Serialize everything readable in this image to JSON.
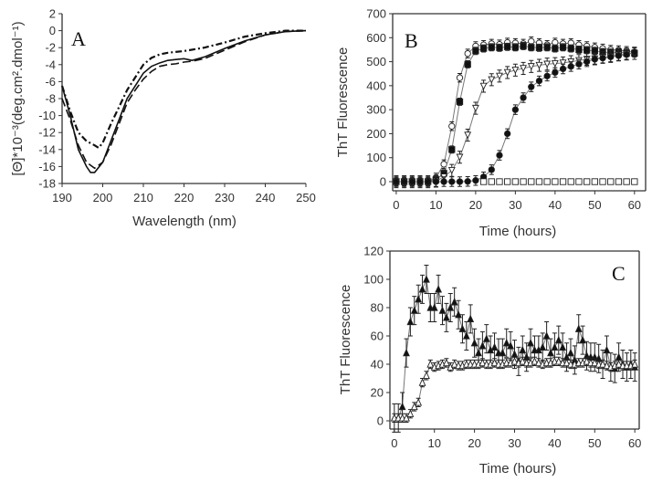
{
  "chart_data": [
    {
      "type": "line",
      "panel_label": "A",
      "xlabel": "Wavelength (nm)",
      "ylabel": "[Θ]*10⁻³(deg.cm².dmol⁻¹)",
      "xlim": [
        190,
        250
      ],
      "ylim": [
        -18,
        2
      ],
      "xticks": [
        190,
        200,
        210,
        220,
        230,
        240,
        250
      ],
      "yticks": [
        2,
        0,
        -2,
        -4,
        -6,
        -8,
        -10,
        -12,
        -14,
        -16,
        -18
      ],
      "series": [
        {
          "name": "solid",
          "style": "solid",
          "x": [
            190,
            192,
            194,
            196,
            197,
            198,
            200,
            202,
            204,
            206,
            208,
            210,
            212,
            214,
            216,
            218,
            220,
            222,
            225,
            230,
            235,
            240,
            245,
            250
          ],
          "y": [
            -6.5,
            -10,
            -14,
            -16,
            -16.7,
            -16.7,
            -15.5,
            -13,
            -10.5,
            -8,
            -6.5,
            -5,
            -4.2,
            -3.8,
            -3.5,
            -3.4,
            -3.3,
            -3.5,
            -3.1,
            -2.1,
            -1.2,
            -0.5,
            -0.1,
            0
          ]
        },
        {
          "name": "dashed",
          "style": "dashed",
          "x": [
            190,
            192,
            194,
            196,
            198,
            200,
            202,
            204,
            206,
            208,
            210,
            212,
            214,
            216,
            218,
            220,
            222,
            225,
            230,
            235,
            240,
            245,
            250
          ],
          "y": [
            -8,
            -10.5,
            -13.5,
            -15.5,
            -16.2,
            -15.5,
            -13.5,
            -11,
            -8.5,
            -7,
            -5.7,
            -4.8,
            -4.2,
            -4,
            -3.9,
            -3.7,
            -3.6,
            -3.3,
            -2.3,
            -1.3,
            -0.5,
            -0.1,
            0
          ]
        },
        {
          "name": "dash-dot",
          "style": "dashdot",
          "x": [
            190,
            192,
            194,
            196,
            198,
            199,
            200,
            202,
            204,
            206,
            208,
            210,
            212,
            214,
            216,
            220,
            225,
            230,
            235,
            240,
            245,
            250
          ],
          "y": [
            -6.5,
            -9.5,
            -12,
            -13,
            -13.5,
            -13.8,
            -13.2,
            -11,
            -9,
            -7,
            -5.5,
            -4,
            -3.2,
            -2.8,
            -2.6,
            -2.4,
            -2,
            -1.4,
            -0.7,
            -0.3,
            0,
            0
          ]
        }
      ]
    },
    {
      "type": "scatter",
      "panel_label": "B",
      "xlabel": "Time (hours)",
      "ylabel": "ThT Fluorescence",
      "xlim": [
        -0.9,
        62.8
      ],
      "ylim": [
        -38,
        700
      ],
      "xticks": [
        0,
        10,
        20,
        30,
        40,
        50,
        60
      ],
      "yticks": [
        0,
        100,
        200,
        300,
        400,
        500,
        600,
        700
      ],
      "series": [
        {
          "name": "open circles",
          "marker": "circle-open",
          "error": 18,
          "x": [
            0,
            2,
            4,
            6,
            8,
            10,
            12,
            14,
            16,
            18,
            20,
            22,
            24,
            26,
            28,
            30,
            32,
            34,
            36,
            38,
            40,
            42,
            44,
            46,
            48,
            50,
            52,
            54,
            56,
            58,
            60
          ],
          "y": [
            0,
            0,
            0,
            0,
            0,
            17,
            73,
            231,
            433,
            534,
            565,
            570,
            575,
            572,
            580,
            578,
            575,
            585,
            578,
            570,
            580,
            575,
            578,
            570,
            565,
            560,
            555,
            550,
            548,
            545,
            540
          ]
        },
        {
          "name": "filled squares",
          "marker": "square-filled",
          "error": 15,
          "x": [
            0,
            2,
            4,
            6,
            8,
            10,
            12,
            14,
            16,
            18,
            20,
            22,
            24,
            26,
            28,
            30,
            32,
            34,
            36,
            38,
            40,
            42,
            44,
            46,
            48,
            50,
            52,
            54,
            56,
            58,
            60
          ],
          "y": [
            0,
            0,
            0,
            0,
            0,
            8,
            35,
            134,
            333,
            489,
            545,
            555,
            560,
            558,
            562,
            560,
            565,
            560,
            558,
            560,
            555,
            560,
            555,
            550,
            548,
            545,
            540,
            538,
            540,
            535,
            535
          ]
        },
        {
          "name": "open triangles",
          "marker": "triangle-down-open",
          "error": 25,
          "x": [
            0,
            2,
            4,
            6,
            8,
            10,
            12,
            14,
            16,
            18,
            20,
            22,
            24,
            26,
            28,
            30,
            32,
            34,
            36,
            38,
            40,
            42,
            44,
            46,
            48,
            50,
            52,
            54,
            56,
            58,
            60
          ],
          "y": [
            0,
            0,
            0,
            0,
            0,
            2,
            20,
            47,
            102,
            194,
            306,
            398,
            425,
            440,
            455,
            465,
            472,
            480,
            485,
            490,
            492,
            495,
            500,
            505,
            510,
            512,
            518,
            522,
            528,
            532,
            535
          ]
        },
        {
          "name": "filled circles",
          "marker": "circle-filled",
          "error": 20,
          "x": [
            0,
            2,
            4,
            6,
            8,
            10,
            12,
            14,
            16,
            18,
            20,
            22,
            24,
            26,
            28,
            30,
            32,
            34,
            36,
            38,
            40,
            42,
            44,
            46,
            48,
            50,
            52,
            54,
            56,
            58,
            60
          ],
          "y": [
            0,
            0,
            0,
            0,
            0,
            0,
            0,
            0,
            0,
            1,
            5,
            20,
            50,
            110,
            200,
            300,
            350,
            395,
            420,
            440,
            455,
            470,
            480,
            490,
            500,
            510,
            515,
            520,
            525,
            530,
            540
          ]
        },
        {
          "name": "open squares",
          "marker": "square-open",
          "error": 0,
          "x": [
            22,
            24,
            26,
            28,
            30,
            32,
            34,
            36,
            38,
            40,
            42,
            44,
            46,
            48,
            50,
            52,
            54,
            56,
            58,
            60
          ],
          "y": [
            0,
            0,
            0,
            0,
            0,
            0,
            0,
            0,
            0,
            0,
            0,
            0,
            0,
            0,
            0,
            0,
            0,
            0,
            0,
            0
          ]
        }
      ]
    },
    {
      "type": "scatter",
      "panel_label": "C",
      "xlabel": "Time (hours)",
      "ylabel": "ThT Fluorescence",
      "xlim": [
        -1.1,
        61.1
      ],
      "ylim": [
        -5.8,
        120
      ],
      "xticks": [
        0,
        10,
        20,
        30,
        40,
        50,
        60
      ],
      "yticks": [
        0,
        20,
        40,
        60,
        80,
        100,
        120
      ],
      "series": [
        {
          "name": "filled triangles",
          "marker": "triangle-filled",
          "error": 10,
          "x": [
            0,
            1,
            2,
            3,
            4,
            5,
            6,
            7,
            8,
            9,
            10,
            11,
            12,
            13,
            14,
            15,
            16,
            17,
            18,
            19,
            20,
            21,
            22,
            23,
            24,
            25,
            26,
            27,
            28,
            29,
            30,
            31,
            32,
            33,
            34,
            35,
            36,
            37,
            38,
            39,
            40,
            41,
            42,
            43,
            44,
            45,
            46,
            47,
            48,
            49,
            50,
            51,
            52,
            53,
            54,
            55,
            56,
            57,
            58,
            59,
            60
          ],
          "y": [
            2,
            2,
            10,
            48,
            70,
            78,
            86,
            93,
            100,
            80,
            80,
            93,
            78,
            73,
            80,
            84,
            75,
            65,
            60,
            72,
            55,
            48,
            53,
            58,
            50,
            52,
            48,
            48,
            55,
            53,
            47,
            42,
            50,
            45,
            55,
            50,
            50,
            52,
            60,
            48,
            52,
            57,
            52,
            45,
            48,
            43,
            65,
            57,
            46,
            45,
            45,
            44,
            40,
            50,
            38,
            37,
            45,
            40,
            38,
            40,
            38
          ]
        },
        {
          "name": "open triangles",
          "marker": "triangle-open",
          "error": 3,
          "x": [
            0,
            1,
            2,
            3,
            4,
            5,
            6,
            7,
            8,
            9,
            10,
            11,
            12,
            13,
            14,
            15,
            16,
            17,
            18,
            19,
            20,
            21,
            22,
            23,
            24,
            25,
            26,
            27,
            28,
            29,
            30,
            31,
            32,
            33,
            34,
            35,
            36,
            37,
            38,
            39,
            40,
            41,
            42,
            43,
            44,
            45,
            46,
            47,
            48,
            49,
            50,
            51,
            52,
            53,
            54,
            55,
            56,
            57,
            58,
            59,
            60
          ],
          "y": [
            2,
            2,
            2,
            2,
            5,
            10,
            13,
            27,
            32,
            40,
            38,
            39,
            40,
            41,
            38,
            40,
            39,
            39,
            40,
            40,
            40,
            40,
            41,
            40,
            40,
            41,
            40,
            40,
            41,
            41,
            42,
            41,
            42,
            41,
            41,
            42,
            41,
            40,
            41,
            41,
            42,
            42,
            41,
            41,
            40,
            40,
            41,
            41,
            42,
            41,
            41,
            40,
            40,
            39,
            38,
            39,
            40,
            39,
            39,
            39,
            40
          ]
        }
      ]
    }
  ]
}
